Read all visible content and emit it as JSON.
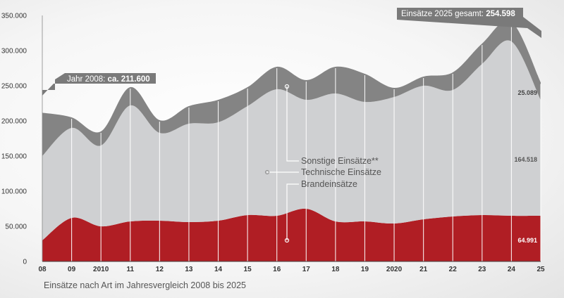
{
  "chart_data": {
    "type": "area",
    "stacked": true,
    "caption": "Einsätze nach Art im Jahresvergleich 2008 bis 2025",
    "x": [
      "08",
      "09",
      "2010",
      "11",
      "12",
      "13",
      "14",
      "15",
      "16",
      "17",
      "18",
      "19",
      "2020",
      "21",
      "22",
      "23",
      "24",
      "25"
    ],
    "ylim": [
      0,
      350000
    ],
    "yticks": [
      "0",
      "50.000",
      "100.000",
      "150.000",
      "200.000",
      "250.000",
      "300.000",
      "350.000"
    ],
    "ytick_values": [
      0,
      50000,
      100000,
      150000,
      200000,
      250000,
      300000,
      350000
    ],
    "series": [
      {
        "name": "Brandeinsätze",
        "color": "#b01e24",
        "values": [
          30000,
          62000,
          50000,
          57000,
          58000,
          56000,
          58000,
          66000,
          65000,
          75000,
          57000,
          57000,
          54000,
          60000,
          64000,
          66000,
          65000,
          64991
        ]
      },
      {
        "name": "Technische Einsätze",
        "color": "#cfd0d2",
        "values": [
          120000,
          128000,
          115000,
          165000,
          125000,
          140000,
          140000,
          155000,
          180000,
          155000,
          182000,
          170000,
          180000,
          190000,
          180000,
          215000,
          248000,
          164518
        ]
      },
      {
        "name": "Sonstige Einsätze**",
        "color": "#848484",
        "values": [
          61600,
          15000,
          20000,
          26000,
          18000,
          25000,
          32000,
          27000,
          32000,
          28000,
          38000,
          40000,
          13000,
          13000,
          25000,
          29000,
          28000,
          25089
        ]
      }
    ],
    "legend": [
      "Sonstige Einsätze**",
      "Technische Einsätze",
      "Brandeinsätze"
    ],
    "annotations": {
      "start_prefix": "Jahr 2008: ",
      "start_value": "ca. 211.600",
      "end_prefix": "Einsätze 2025 gesamt: ",
      "end_value": "254.598",
      "end_labels": [
        "25.089",
        "164.518",
        "64.991"
      ]
    }
  }
}
